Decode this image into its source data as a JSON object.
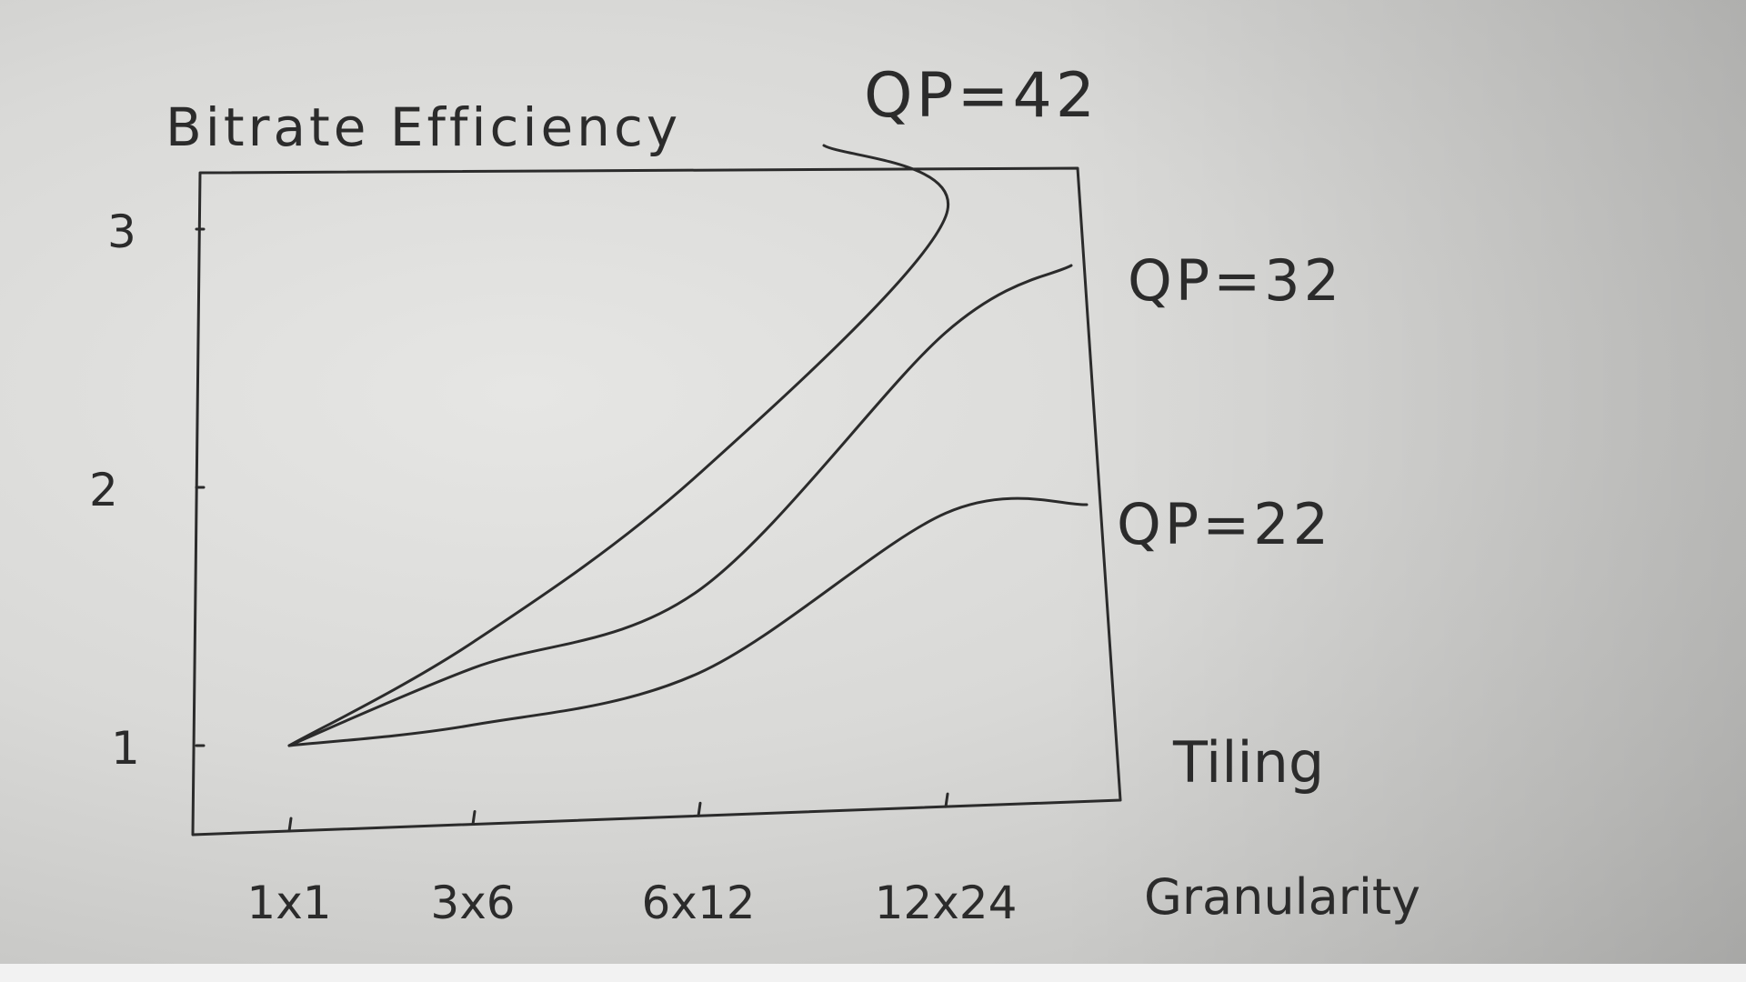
{
  "chart_data": {
    "type": "line",
    "title": "Bitrate Efficiency",
    "xlabel": "Tiling Granularity",
    "ylabel": "",
    "categories": [
      "1x1",
      "3x6",
      "6x12",
      "12x24"
    ],
    "yticks": [
      "1",
      "2",
      "3"
    ],
    "ylim": [
      0.9,
      3.25
    ],
    "grid": false,
    "legend": "inline-right",
    "series": [
      {
        "name": "QP=42",
        "values": [
          1.0,
          1.4,
          2.05,
          3.05
        ]
      },
      {
        "name": "QP=32",
        "values": [
          1.0,
          1.3,
          1.6,
          2.6
        ]
      },
      {
        "name": "QP=22",
        "values": [
          1.0,
          1.08,
          1.28,
          1.9
        ]
      }
    ]
  },
  "colors": {
    "ink": "#2b2b2b",
    "paper": "#dcdcda"
  }
}
